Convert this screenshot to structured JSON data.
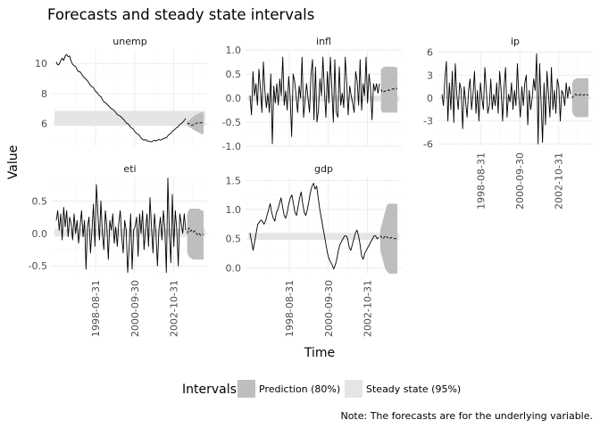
{
  "chart_data": {
    "type": "line",
    "title": "Forecasts and steady state intervals",
    "xlabel": "Time",
    "ylabel": "Value",
    "legend": {
      "title": "Intervals",
      "position": "bottom",
      "items": [
        {
          "label": "Prediction (80%)",
          "color": "#bebebe"
        },
        {
          "label": "Steady state (95%)",
          "color": "#e5e5e5"
        }
      ]
    },
    "note": "Note: The forecasts are for the underlying variable.",
    "colors": {
      "line": "#000000",
      "prediction": "#bebebe",
      "steady": "#e5e5e5",
      "grid": "#ebebeb"
    },
    "x_ticks": [
      "1998-08-31",
      "2000-09-30",
      "2002-10-31"
    ],
    "panels": [
      {
        "name": "unemp",
        "ylim": [
          4.5,
          10.9
        ],
        "yticks": [
          6,
          8,
          10
        ],
        "steady_state": [
          5.85,
          6.85
        ],
        "series": [
          10.1,
          9.9,
          9.95,
          10.2,
          10.35,
          10.2,
          10.5,
          10.6,
          10.45,
          10.5,
          10.15,
          9.95,
          9.85,
          9.8,
          9.6,
          9.45,
          9.45,
          9.3,
          9.15,
          9.05,
          8.95,
          8.85,
          8.7,
          8.55,
          8.45,
          8.4,
          8.2,
          8.1,
          8.0,
          7.85,
          7.8,
          7.6,
          7.45,
          7.4,
          7.3,
          7.2,
          7.1,
          7.0,
          6.95,
          6.85,
          6.75,
          6.6,
          6.55,
          6.5,
          6.4,
          6.3,
          6.2,
          6.05,
          6.0,
          5.9,
          5.75,
          5.7,
          5.6,
          5.45,
          5.35,
          5.3,
          5.2,
          5.05,
          4.95,
          4.9,
          4.95,
          4.85,
          4.85,
          4.8,
          4.8,
          4.85,
          4.9,
          4.85,
          4.9,
          4.95,
          4.9,
          4.95,
          5.0,
          5.05,
          5.05,
          5.2,
          5.3,
          5.35,
          5.5,
          5.55,
          5.65,
          5.75,
          5.8,
          5.95,
          6.0,
          6.1,
          6.2,
          6.35
        ],
        "forecast": [
          6.05,
          6.0,
          5.95,
          5.9,
          5.92,
          5.98,
          6.02,
          6.05,
          6.05,
          6.05,
          6.07,
          6.08
        ],
        "pred_lower": [
          5.9,
          5.8,
          5.75,
          5.7,
          5.6,
          5.55,
          5.5,
          5.45,
          5.4,
          5.35,
          5.3,
          5.3
        ],
        "pred_upper": [
          6.15,
          6.2,
          6.3,
          6.4,
          6.45,
          6.55,
          6.6,
          6.65,
          6.7,
          6.75,
          6.75,
          6.75
        ]
      },
      {
        "name": "infl",
        "ylim": [
          -1.0,
          1.0
        ],
        "yticks": [
          -1.0,
          -0.5,
          0.0,
          0.5,
          1.0
        ],
        "steady_state": [
          -0.07,
          0.05
        ],
        "series": [
          0.05,
          -0.35,
          0.55,
          0.05,
          0.3,
          -0.15,
          0.6,
          0.2,
          -0.3,
          0.75,
          0.15,
          -0.2,
          0.1,
          -0.3,
          0.5,
          -0.95,
          0.25,
          -0.1,
          0.3,
          -0.15,
          0.4,
          0.05,
          0.85,
          -0.15,
          0.15,
          -0.25,
          0.45,
          0.0,
          -0.8,
          0.5,
          0.35,
          0.05,
          -0.3,
          0.25,
          0.0,
          0.85,
          -0.4,
          -0.05,
          0.3,
          0.0,
          -0.3,
          0.5,
          0.8,
          -0.45,
          0.65,
          -0.5,
          -0.25,
          0.4,
          0.05,
          0.85,
          0.15,
          -0.4,
          0.55,
          -0.1,
          0.85,
          0.2,
          -0.5,
          0.8,
          -0.3,
          -0.4,
          0.65,
          -0.15,
          0.1,
          -0.2,
          0.85,
          0.3,
          -0.35,
          0.25,
          0.05,
          -0.1,
          -0.3,
          0.55,
          0.35,
          -0.15,
          0.8,
          -0.25,
          0.3,
          0.05,
          0.85,
          -0.1,
          0.5,
          0.2,
          -0.45,
          0.3,
          0.15,
          0.3,
          0.1,
          0.3
        ],
        "forecast": [
          0.18,
          0.12,
          0.13,
          0.15,
          0.17,
          0.16,
          0.17,
          0.18,
          0.19,
          0.19,
          0.2,
          0.2
        ],
        "pred_lower": [
          -0.25,
          -0.3,
          -0.3,
          -0.3,
          -0.3,
          -0.3,
          -0.3,
          -0.3,
          -0.3,
          -0.3,
          -0.3,
          -0.3
        ],
        "pred_upper": [
          0.6,
          0.62,
          0.65,
          0.65,
          0.65,
          0.66,
          0.65,
          0.65,
          0.65,
          0.65,
          0.64,
          0.64
        ]
      },
      {
        "name": "ip",
        "ylim": [
          -6.3,
          6.3
        ],
        "yticks": [
          -6,
          -3,
          0,
          3,
          6
        ],
        "steady_state": [
          -0.1,
          0.2
        ],
        "series": [
          0.5,
          -1.0,
          2.5,
          4.8,
          -3.0,
          2.0,
          -1.5,
          3.5,
          -3.2,
          4.5,
          0.5,
          -1.5,
          2.0,
          1.0,
          -4.0,
          1.5,
          -0.5,
          -2.5,
          1.0,
          2.5,
          -1.5,
          0.5,
          3.5,
          -2.0,
          1.0,
          -3.0,
          2.0,
          0.0,
          -1.5,
          4.0,
          1.0,
          -2.0,
          -1.0,
          2.5,
          -1.5,
          0.5,
          -1.0,
          2.0,
          -2.0,
          3.5,
          1.0,
          -3.0,
          1.5,
          4.0,
          -2.5,
          0.5,
          -0.5,
          2.0,
          -1.5,
          1.0,
          -1.0,
          4.5,
          0.0,
          -2.5,
          1.5,
          -1.0,
          2.0,
          3.0,
          -3.5,
          1.0,
          -1.5,
          0.0,
          2.5,
          1.0,
          5.8,
          -6.0,
          4.5,
          -0.5,
          -5.8,
          2.0,
          -3.5,
          3.5,
          0.5,
          -2.5,
          4.0,
          -1.5,
          1.0,
          -2.0,
          2.5,
          1.5,
          -3.0,
          1.0,
          0.5,
          -1.0,
          2.0,
          0.0,
          1.5,
          0.5
        ],
        "forecast": [
          0.0,
          0.3,
          0.5,
          0.4,
          0.3,
          0.4,
          0.5,
          0.4,
          0.4,
          0.5,
          0.4,
          0.4
        ],
        "pred_lower": [
          -1.8,
          -2.2,
          -2.4,
          -2.5,
          -2.5,
          -2.5,
          -2.5,
          -2.5,
          -2.5,
          -2.5,
          -2.5,
          -2.5
        ],
        "pred_upper": [
          2.0,
          2.4,
          2.5,
          2.6,
          2.6,
          2.6,
          2.6,
          2.6,
          2.6,
          2.6,
          2.6,
          2.6
        ]
      },
      {
        "name": "eti",
        "ylim": [
          -0.62,
          0.86
        ],
        "yticks": [
          -0.5,
          0.0,
          0.5
        ],
        "steady_state": [
          -0.05,
          0.07
        ],
        "series": [
          0.2,
          0.35,
          0.05,
          0.3,
          -0.1,
          0.4,
          0.1,
          0.35,
          -0.05,
          0.25,
          0.15,
          -0.1,
          0.3,
          0.0,
          0.2,
          -0.15,
          0.1,
          0.35,
          -0.05,
          0.2,
          -0.55,
          0.1,
          0.25,
          -0.3,
          0.05,
          0.45,
          -0.2,
          0.75,
          0.3,
          -0.1,
          0.5,
          0.0,
          -0.25,
          0.35,
          0.1,
          -0.4,
          0.2,
          0.05,
          0.3,
          -0.15,
          0.1,
          -0.2,
          0.15,
          0.35,
          -0.05,
          -0.3,
          0.2,
          0.05,
          -0.6,
          -0.2,
          0.3,
          -0.55,
          0.05,
          0.1,
          0.25,
          -0.35,
          0.3,
          0.0,
          0.35,
          -0.25,
          0.05,
          0.3,
          -0.2,
          0.55,
          0.1,
          -0.3,
          0.3,
          0.0,
          -0.5,
          0.05,
          0.25,
          -0.1,
          0.35,
          0.05,
          -0.6,
          0.85,
          0.0,
          -0.45,
          0.6,
          -0.2,
          0.35,
          0.05,
          -0.5,
          0.3,
          0.15,
          0.0,
          0.3,
          0.05
        ],
        "forecast": [
          0.0,
          0.08,
          0.03,
          0.05,
          0.02,
          0.04,
          0.0,
          -0.02,
          0.0,
          -0.03,
          -0.02,
          -0.01
        ],
        "pred_lower": [
          -0.3,
          -0.35,
          -0.38,
          -0.38,
          -0.4,
          -0.4,
          -0.4,
          -0.4,
          -0.4,
          -0.4,
          -0.4,
          -0.4
        ],
        "pred_upper": [
          0.3,
          0.35,
          0.38,
          0.38,
          0.38,
          0.38,
          0.38,
          0.38,
          0.38,
          0.36,
          0.35,
          0.35
        ]
      },
      {
        "name": "gdp",
        "ylim": [
          -0.1,
          1.55
        ],
        "yticks": [
          0.0,
          0.5,
          1.0,
          1.5
        ],
        "steady_state": [
          0.48,
          0.6
        ],
        "series": [
          0.6,
          0.45,
          0.3,
          0.45,
          0.6,
          0.75,
          0.78,
          0.82,
          0.8,
          0.75,
          0.8,
          0.9,
          1.0,
          1.1,
          0.95,
          0.85,
          0.8,
          0.95,
          1.0,
          1.1,
          1.2,
          1.05,
          0.9,
          0.85,
          0.95,
          1.1,
          1.2,
          1.25,
          1.1,
          0.95,
          0.9,
          1.05,
          1.2,
          1.3,
          1.1,
          0.95,
          0.9,
          1.0,
          1.15,
          1.3,
          1.4,
          1.45,
          1.35,
          1.4,
          1.2,
          1.0,
          0.85,
          0.7,
          0.55,
          0.4,
          0.25,
          0.15,
          0.1,
          0.05,
          -0.02,
          0.05,
          0.15,
          0.3,
          0.4,
          0.45,
          0.5,
          0.55,
          0.55,
          0.5,
          0.35,
          0.3,
          0.4,
          0.5,
          0.6,
          0.65,
          0.55,
          0.4,
          0.2,
          0.15,
          0.25,
          0.3,
          0.35,
          0.4,
          0.45,
          0.5,
          0.55,
          0.55,
          0.5,
          0.52
        ],
        "forecast": [
          0.55,
          0.52,
          0.5,
          0.55,
          0.53,
          0.52,
          0.5,
          0.52,
          0.51,
          0.5,
          0.5,
          0.49
        ],
        "pred_lower": [
          0.3,
          0.2,
          0.1,
          0.0,
          -0.05,
          -0.08,
          -0.1,
          -0.1,
          -0.1,
          -0.1,
          -0.1,
          -0.1
        ],
        "pred_upper": [
          0.65,
          0.75,
          0.85,
          0.95,
          1.05,
          1.1,
          1.1,
          1.1,
          1.1,
          1.1,
          1.1,
          1.1
        ]
      }
    ]
  }
}
